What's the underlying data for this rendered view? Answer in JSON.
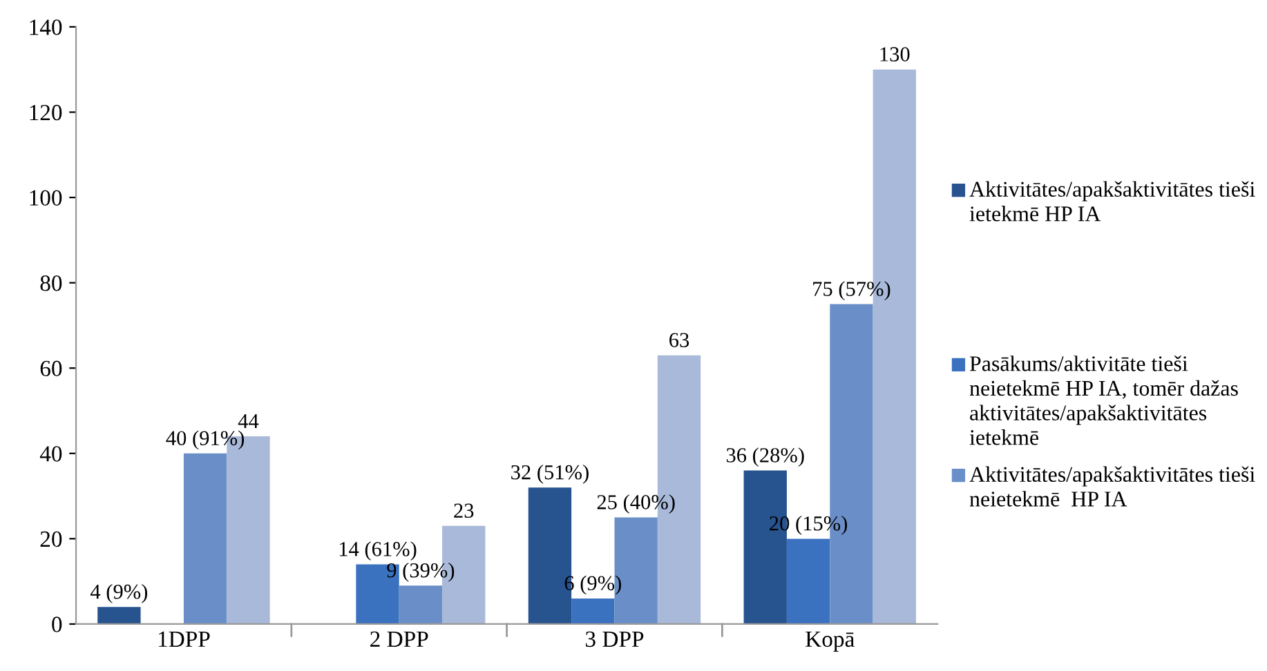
{
  "chart_data": {
    "type": "bar",
    "categories": [
      "1DPP",
      "2 DPP",
      "3 DPP",
      "Kopā"
    ],
    "series": [
      {
        "name": "Aktivitātes/apakšaktivitātes tieši ietekmē HP IA",
        "color": "#27538f",
        "values": [
          4,
          null,
          32,
          36
        ],
        "value_labels": [
          "4 (9%)",
          null,
          "32 (51%)",
          "36 (28%)"
        ]
      },
      {
        "name": "Pasākums/aktivitāte tieši neietekmē HP IA, tomēr dažas aktivitātes/apakšaktivitātes ietekmē",
        "color": "#3a72c0",
        "values": [
          null,
          14,
          6,
          20
        ],
        "value_labels": [
          null,
          "14 (61%)",
          "6 (9%)",
          "20 (15%)"
        ]
      },
      {
        "name": "Aktivitātes/apakšaktivitātes tieši neietekmē  HP IA",
        "color": "#6a8fc8",
        "values": [
          40,
          9,
          25,
          75
        ],
        "value_labels": [
          "40 (91%)",
          "9 (39%)",
          "25 (40%)",
          "75 (57%)"
        ]
      },
      {
        "color": "#a8b9d9",
        "values": [
          44,
          23,
          63,
          130
        ],
        "value_labels": [
          "44",
          "23",
          "63",
          "130"
        ]
      }
    ],
    "ylim": [
      0,
      140
    ],
    "yticks": [
      0,
      20,
      40,
      60,
      80,
      100,
      120,
      140
    ],
    "grid": false,
    "legend": "right"
  }
}
